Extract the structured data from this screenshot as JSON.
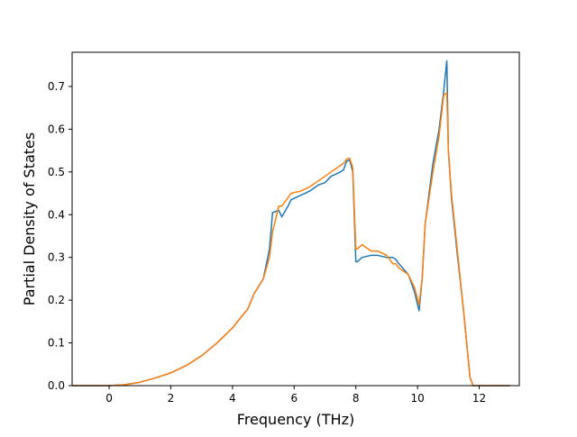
{
  "chart_data": {
    "type": "line",
    "xlabel": "Frequency (THz)",
    "ylabel": "Partial Density of States",
    "xlim": [
      -1.2,
      13.3
    ],
    "ylim": [
      0,
      0.78
    ],
    "xticks": [
      0,
      2,
      4,
      6,
      8,
      10,
      12
    ],
    "yticks": [
      0.0,
      0.1,
      0.2,
      0.3,
      0.4,
      0.5,
      0.6,
      0.7
    ],
    "xtick_labels": [
      "0",
      "2",
      "4",
      "6",
      "8",
      "10",
      "12"
    ],
    "ytick_labels": [
      "0.0",
      "0.1",
      "0.2",
      "0.3",
      "0.4",
      "0.5",
      "0.6",
      "0.7"
    ],
    "grid": false,
    "legend": "none",
    "series": [
      {
        "color": "#1f77b4",
        "x": [
          -1.2,
          0.0,
          0.5,
          1.0,
          1.5,
          2.0,
          2.5,
          3.0,
          3.5,
          4.0,
          4.5,
          4.7,
          5.0,
          5.2,
          5.3,
          5.5,
          5.6,
          5.8,
          5.9,
          6.2,
          6.5,
          6.8,
          7.0,
          7.2,
          7.5,
          7.6,
          7.7,
          7.8,
          7.9,
          8.0,
          8.05,
          8.2,
          8.5,
          8.7,
          9.0,
          9.2,
          9.3,
          9.4,
          9.7,
          9.9,
          10.05,
          10.15,
          10.25,
          10.5,
          10.7,
          10.85,
          10.95,
          11.0,
          11.1,
          11.3,
          11.5,
          11.7,
          11.8,
          13.0
        ],
        "y": [
          0.0,
          0.0,
          0.002,
          0.008,
          0.018,
          0.03,
          0.047,
          0.07,
          0.1,
          0.135,
          0.18,
          0.215,
          0.25,
          0.32,
          0.405,
          0.41,
          0.395,
          0.42,
          0.435,
          0.445,
          0.455,
          0.47,
          0.475,
          0.49,
          0.5,
          0.505,
          0.525,
          0.528,
          0.5,
          0.29,
          0.29,
          0.3,
          0.305,
          0.305,
          0.3,
          0.3,
          0.295,
          0.285,
          0.26,
          0.22,
          0.175,
          0.25,
          0.38,
          0.52,
          0.6,
          0.69,
          0.76,
          0.55,
          0.44,
          0.3,
          0.17,
          0.02,
          0.0,
          0.0
        ]
      },
      {
        "color": "#ff7f0e",
        "x": [
          -1.2,
          0.0,
          0.5,
          1.0,
          1.5,
          2.0,
          2.5,
          3.0,
          3.5,
          4.0,
          4.5,
          4.7,
          5.0,
          5.2,
          5.3,
          5.5,
          5.6,
          5.8,
          5.9,
          6.2,
          6.5,
          6.8,
          7.0,
          7.2,
          7.5,
          7.6,
          7.7,
          7.8,
          7.9,
          8.0,
          8.05,
          8.2,
          8.5,
          8.7,
          9.0,
          9.2,
          9.3,
          9.4,
          9.7,
          9.9,
          10.05,
          10.15,
          10.25,
          10.5,
          10.7,
          10.85,
          10.95,
          11.0,
          11.1,
          11.3,
          11.5,
          11.7,
          11.8,
          13.0
        ],
        "y": [
          0.0,
          0.0,
          0.002,
          0.008,
          0.018,
          0.03,
          0.047,
          0.07,
          0.1,
          0.135,
          0.18,
          0.215,
          0.25,
          0.3,
          0.36,
          0.42,
          0.42,
          0.44,
          0.45,
          0.455,
          0.465,
          0.48,
          0.49,
          0.5,
          0.515,
          0.52,
          0.53,
          0.532,
          0.51,
          0.32,
          0.32,
          0.33,
          0.315,
          0.315,
          0.305,
          0.285,
          0.285,
          0.275,
          0.26,
          0.23,
          0.19,
          0.25,
          0.38,
          0.5,
          0.585,
          0.68,
          0.685,
          0.55,
          0.45,
          0.31,
          0.17,
          0.02,
          0.0,
          0.0
        ]
      }
    ]
  }
}
